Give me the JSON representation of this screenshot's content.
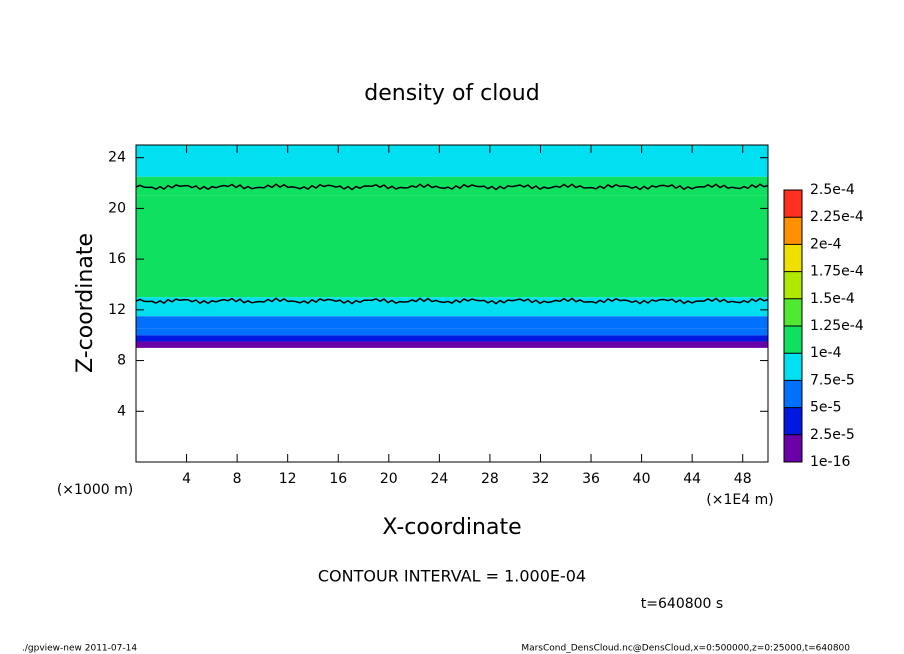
{
  "chart_data": {
    "type": "heatmap",
    "title": "density of cloud",
    "xlabel": "X-coordinate",
    "ylabel": "Z-coordinate",
    "xunit": "(×1E4 m)",
    "yunit": "(×1000 m)",
    "xlim": [
      0,
      50
    ],
    "xticks": [
      4,
      8,
      12,
      16,
      20,
      24,
      28,
      32,
      36,
      40,
      44,
      48
    ],
    "ylim": [
      0,
      25
    ],
    "yticks": [
      4,
      8,
      12,
      16,
      20,
      24
    ],
    "z_edges": [
      9,
      9.5,
      10,
      10.5,
      11.5,
      13,
      21,
      22.5,
      25
    ],
    "density": [
      1e-05,
      3e-05,
      5.5e-05,
      6.5e-05,
      8e-05,
      0.000105,
      0.0001,
      8.5e-05
    ],
    "contours": [
      12.7,
      21.7
    ],
    "colorbar": {
      "levels": [
        {
          "value": 1e-16,
          "label": "1e-16"
        },
        {
          "value": 2.5e-05,
          "label": "2.5e-5"
        },
        {
          "value": 5e-05,
          "label": "5e-5"
        },
        {
          "value": 7.5e-05,
          "label": "7.5e-5"
        },
        {
          "value": 0.0001,
          "label": "1e-4"
        },
        {
          "value": 0.000125,
          "label": "1.25e-4"
        },
        {
          "value": 0.00015,
          "label": "1.5e-4"
        },
        {
          "value": 0.000175,
          "label": "1.75e-4"
        },
        {
          "value": 0.0002,
          "label": "2e-4"
        },
        {
          "value": 0.000225,
          "label": "2.25e-4"
        },
        {
          "value": 0.00025,
          "label": "2.5e-4"
        }
      ],
      "colors": [
        "#6a00a8",
        "#0018e0",
        "#0070ff",
        "#00e0f0",
        "#10e060",
        "#50e830",
        "#b0e800",
        "#f0e000",
        "#ff9000",
        "#ff3020"
      ]
    },
    "annotation": "CONTOUR INTERVAL = 1.000E-04",
    "time": "t=640800 s",
    "footer_left": "./gpview-new  2011-07-14",
    "footer_right": "MarsCond_DensCloud.nc@DensCloud,x=0:500000,z=0:25000,t=640800"
  }
}
